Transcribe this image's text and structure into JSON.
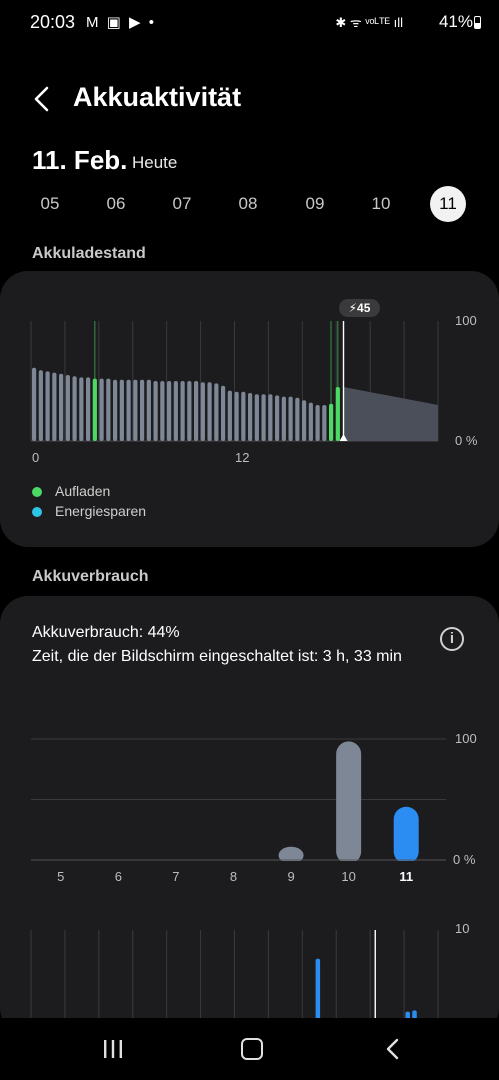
{
  "status_bar": {
    "time": "20:03",
    "left_icons": "M ▣ ▶ •",
    "right_icons": "✱ ᯤ ᵛᵒᴸᵀᴱ ıll",
    "battery": "41%"
  },
  "header": {
    "title": "Akkuaktivität"
  },
  "date_header": {
    "date": "11. Feb.",
    "relative": "Heute"
  },
  "day_selector": {
    "days": [
      "05",
      "06",
      "07",
      "08",
      "09",
      "10",
      "11"
    ],
    "selected": "11"
  },
  "battery_level": {
    "section_title": "Akkuladestand",
    "y_labels": {
      "top": "100",
      "bottom": "0 %"
    },
    "x_labels": {
      "start": "0",
      "mid": "12"
    },
    "current_badge": "45",
    "legend": [
      {
        "label": "Aufladen",
        "color": "#4cd964"
      },
      {
        "label": "Energiesparen",
        "color": "#2ec4e6"
      }
    ],
    "colors": {
      "bar": "#7e8796",
      "charging": "#4cd964",
      "projection": "#4a4f59"
    },
    "chart_data": {
      "type": "bar",
      "ylim": [
        0,
        100
      ],
      "values": [
        61,
        59,
        58,
        57,
        56,
        55,
        54,
        53,
        53,
        52,
        52,
        52,
        51,
        51,
        51,
        51,
        51,
        51,
        50,
        50,
        50,
        50,
        50,
        50,
        50,
        49,
        49,
        48,
        46,
        42,
        41,
        41,
        40,
        39,
        39,
        39,
        38,
        37,
        37,
        36,
        34,
        32,
        30,
        30,
        31,
        45
      ],
      "charging_indices": [
        9,
        44,
        45
      ],
      "projection": {
        "from": 45,
        "to": 30
      }
    }
  },
  "battery_usage": {
    "section_title": "Akkuverbrauch",
    "usage_text": "Akkuverbrauch: 44%",
    "screen_time_text": "Zeit, die der Bildschirm eingeschaltet ist: 3 h, 33 min",
    "info_icon": "info-icon",
    "y_labels": {
      "top": "100",
      "bottom": "0 %"
    },
    "chart_data": {
      "type": "bar",
      "categories": [
        "5",
        "6",
        "7",
        "8",
        "9",
        "10",
        "11"
      ],
      "values": [
        0,
        0,
        0,
        0,
        11,
        98,
        44
      ],
      "ylim": [
        0,
        100
      ],
      "highlight": "11",
      "colors": {
        "normal": "#7e8796",
        "highlight": "#2b8cf2"
      }
    },
    "hourly_chart": {
      "y_label_top": "10",
      "chart_data": {
        "type": "bar",
        "points": [
          {
            "hour": 16.9,
            "value": 5.1
          },
          {
            "hour": 22.2,
            "value": 0.7
          },
          {
            "hour": 22.6,
            "value": 0.8
          }
        ]
      }
    }
  },
  "nav_bar": {
    "recent": "recent-apps-icon",
    "home": "home-icon",
    "back": "back-icon"
  }
}
